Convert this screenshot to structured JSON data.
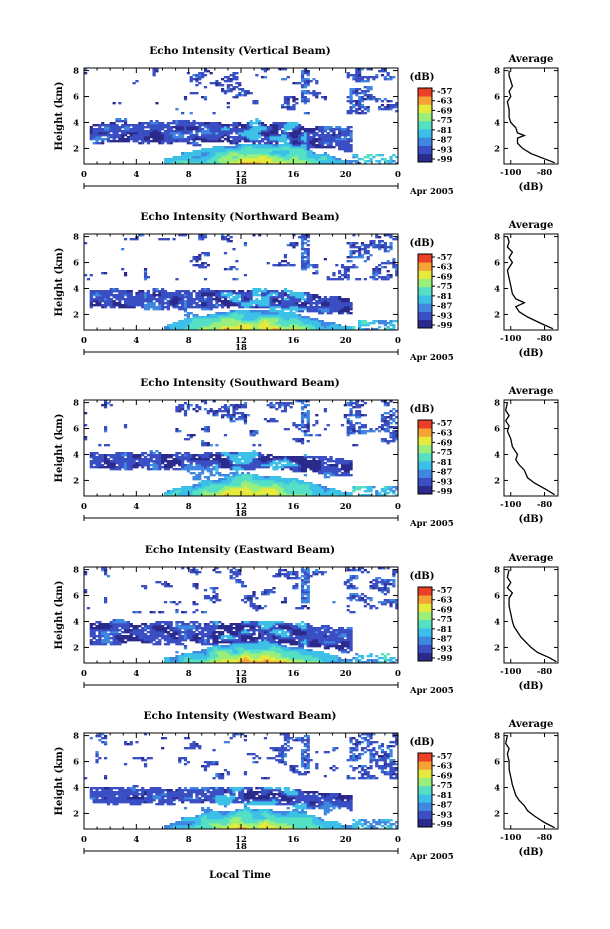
{
  "colors": {
    "colormap": [
      "#2a2a8c",
      "#3a4fc4",
      "#3f87e0",
      "#3cc0e8",
      "#55e0c4",
      "#9aef7a",
      "#e6ea3c",
      "#f6a234",
      "#ec4026"
    ]
  },
  "chart_data": {
    "type": "heatmap",
    "date_label": "Apr 2005",
    "x_axis_title": "Local Time",
    "x_ticks": [
      "0",
      "4",
      "8",
      "12",
      "16",
      "20",
      "0"
    ],
    "day_label": "18",
    "y_ticks": [
      "2",
      "4",
      "6",
      "8"
    ],
    "ylabel": "Height (km)",
    "ylim_km": [
      0.8,
      8.2
    ],
    "xlim_hours": [
      0,
      24
    ],
    "colorbar": {
      "unit": "(dB)",
      "levels": [
        "-57",
        "-63",
        "-69",
        "-75",
        "-81",
        "-87",
        "-93",
        "-99"
      ]
    },
    "average_profile": {
      "title": "Average",
      "xlabel": "(dB)",
      "x_ticks": [
        "-100",
        "-80"
      ],
      "y_ticks": [
        "2",
        "4",
        "6",
        "8"
      ],
      "xlim": [
        -104,
        -72
      ]
    },
    "panels": [
      {
        "title": "Echo Intensity (Vertical Beam)",
        "profile": [
          [
            0.9,
            -74
          ],
          [
            1.2,
            -80
          ],
          [
            1.6,
            -88
          ],
          [
            2.0,
            -93
          ],
          [
            2.4,
            -96
          ],
          [
            2.8,
            -96
          ],
          [
            3.0,
            -92
          ],
          [
            3.2,
            -96
          ],
          [
            3.6,
            -97
          ],
          [
            4.0,
            -100
          ],
          [
            4.4,
            -101
          ],
          [
            5.0,
            -101
          ],
          [
            5.6,
            -102
          ],
          [
            6.0,
            -100
          ],
          [
            6.4,
            -101
          ],
          [
            6.8,
            -99
          ],
          [
            7.2,
            -100
          ],
          [
            7.6,
            -101
          ],
          [
            8.0,
            -101
          ]
        ]
      },
      {
        "title": "Echo Intensity (Northward Beam)",
        "profile": [
          [
            0.9,
            -75
          ],
          [
            1.3,
            -82
          ],
          [
            1.8,
            -90
          ],
          [
            2.2,
            -95
          ],
          [
            2.6,
            -97
          ],
          [
            2.9,
            -92
          ],
          [
            3.2,
            -97
          ],
          [
            3.6,
            -99
          ],
          [
            4.2,
            -100
          ],
          [
            4.8,
            -101
          ],
          [
            5.4,
            -102
          ],
          [
            6.0,
            -99
          ],
          [
            6.4,
            -101
          ],
          [
            6.8,
            -99
          ],
          [
            7.2,
            -102
          ],
          [
            7.6,
            -101
          ],
          [
            8.0,
            -102
          ]
        ]
      },
      {
        "title": "Echo Intensity (Southward Beam)",
        "profile": [
          [
            0.9,
            -74
          ],
          [
            1.3,
            -79
          ],
          [
            1.8,
            -86
          ],
          [
            2.2,
            -90
          ],
          [
            2.8,
            -92
          ],
          [
            3.2,
            -95
          ],
          [
            3.6,
            -97
          ],
          [
            4.0,
            -96
          ],
          [
            4.6,
            -99
          ],
          [
            5.2,
            -100
          ],
          [
            5.8,
            -102
          ],
          [
            6.2,
            -101
          ],
          [
            6.6,
            -103
          ],
          [
            7.0,
            -101
          ],
          [
            7.4,
            -103
          ],
          [
            8.0,
            -102
          ]
        ]
      },
      {
        "title": "Echo Intensity (Eastward Beam)",
        "profile": [
          [
            0.9,
            -73
          ],
          [
            1.2,
            -77
          ],
          [
            1.6,
            -84
          ],
          [
            2.0,
            -88
          ],
          [
            2.4,
            -91
          ],
          [
            2.8,
            -94
          ],
          [
            3.2,
            -96
          ],
          [
            3.6,
            -98
          ],
          [
            4.0,
            -99
          ],
          [
            4.6,
            -100
          ],
          [
            5.2,
            -101
          ],
          [
            5.8,
            -101
          ],
          [
            6.2,
            -99
          ],
          [
            6.6,
            -102
          ],
          [
            7.0,
            -100
          ],
          [
            7.4,
            -102
          ],
          [
            8.0,
            -101
          ]
        ]
      },
      {
        "title": "Echo Intensity (Westward Beam)",
        "profile": [
          [
            0.9,
            -74
          ],
          [
            1.3,
            -80
          ],
          [
            1.8,
            -86
          ],
          [
            2.2,
            -90
          ],
          [
            2.6,
            -92
          ],
          [
            3.0,
            -95
          ],
          [
            3.4,
            -97
          ],
          [
            3.8,
            -98
          ],
          [
            4.2,
            -99
          ],
          [
            4.8,
            -100
          ],
          [
            5.4,
            -101
          ],
          [
            6.0,
            -101
          ],
          [
            6.6,
            -102
          ],
          [
            7.0,
            -101
          ],
          [
            7.4,
            -103
          ],
          [
            8.0,
            -102
          ]
        ]
      }
    ]
  }
}
